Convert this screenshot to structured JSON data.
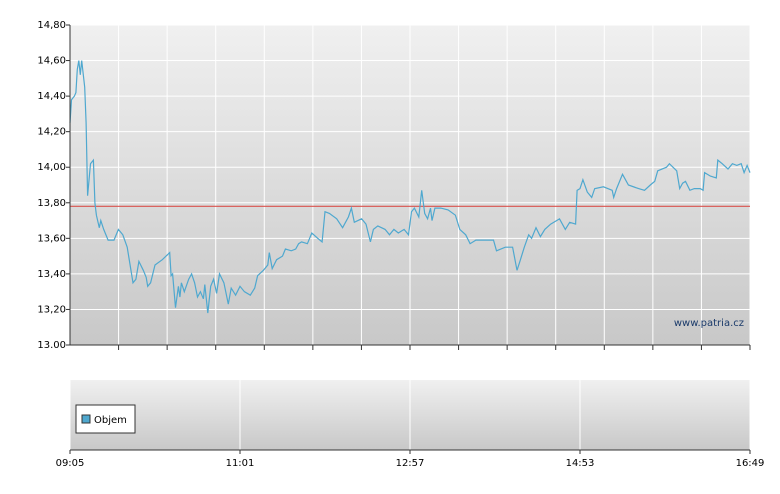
{
  "chart_data": {
    "type": "line",
    "x": [
      "09:05",
      "09:06",
      "09:08",
      "09:09",
      "09:10",
      "09:11",
      "09:12",
      "09:13",
      "09:15",
      "09:16",
      "09:17",
      "09:19",
      "09:21",
      "09:22",
      "09:23",
      "09:25",
      "09:26",
      "09:28",
      "09:31",
      "09:35",
      "09:38",
      "09:41",
      "09:44",
      "09:46",
      "09:48",
      "09:50",
      "09:52",
      "09:55",
      "09:57",
      "09:58",
      "10:00",
      "10:03",
      "10:08",
      "10:13",
      "10:14",
      "10:15",
      "10:17",
      "10:19",
      "10:20",
      "10:21",
      "10:23",
      "10:26",
      "10:28",
      "10:30",
      "10:32",
      "10:34",
      "10:36",
      "10:37",
      "10:39",
      "10:41",
      "10:43",
      "10:45",
      "10:47",
      "10:50",
      "10:53",
      "10:55",
      "10:58",
      "11:01",
      "11:04",
      "11:08",
      "11:11",
      "11:13",
      "11:17",
      "11:20",
      "11:21",
      "11:23",
      "11:26",
      "11:30",
      "11:32",
      "11:36",
      "11:39",
      "11:41",
      "11:43",
      "11:47",
      "11:50",
      "11:54",
      "11:57",
      "11:59",
      "12:02",
      "12:07",
      "12:11",
      "12:15",
      "12:17",
      "12:19",
      "12:24",
      "12:27",
      "12:30",
      "12:32",
      "12:35",
      "12:40",
      "12:43",
      "12:46",
      "12:49",
      "12:53",
      "12:56",
      "12:58",
      "13:00",
      "13:03",
      "13:05",
      "13:07",
      "13:09",
      "13:11",
      "13:12",
      "13:14",
      "13:18",
      "13:23",
      "13:28",
      "13:31",
      "13:35",
      "13:38",
      "13:42",
      "13:48",
      "13:54",
      "13:56",
      "14:02",
      "14:05",
      "14:07",
      "14:10",
      "14:12",
      "14:15",
      "14:18",
      "14:20",
      "14:23",
      "14:26",
      "14:29",
      "14:33",
      "14:37",
      "14:39",
      "14:43",
      "14:46",
      "14:50",
      "14:51",
      "14:53",
      "14:55",
      "14:58",
      "15:01",
      "15:03",
      "15:09",
      "15:12",
      "15:15",
      "15:16",
      "15:18",
      "15:22",
      "15:26",
      "15:33",
      "15:37",
      "15:41",
      "15:44",
      "15:46",
      "15:52",
      "15:54",
      "15:59",
      "16:01",
      "16:03",
      "16:05",
      "16:08",
      "16:11",
      "16:15",
      "16:17",
      "16:18",
      "16:22",
      "16:26",
      "16:27",
      "16:30",
      "16:34",
      "16:37",
      "16:40",
      "16:43",
      "16:45",
      "16:47",
      "16:49"
    ],
    "series": [
      {
        "color": "#4fa8cf",
        "values": [
          14.25,
          14.38,
          14.4,
          14.42,
          14.55,
          14.6,
          14.52,
          14.6,
          14.45,
          14.25,
          13.84,
          14.02,
          14.04,
          13.8,
          13.73,
          13.66,
          13.7,
          13.65,
          13.59,
          13.59,
          13.65,
          13.62,
          13.55,
          13.45,
          13.35,
          13.37,
          13.47,
          13.42,
          13.38,
          13.33,
          13.35,
          13.45,
          13.48,
          13.52,
          13.39,
          13.4,
          13.21,
          13.33,
          13.27,
          13.35,
          13.3,
          13.37,
          13.4,
          13.35,
          13.27,
          13.3,
          13.26,
          13.34,
          13.18,
          13.33,
          13.37,
          13.29,
          13.4,
          13.35,
          13.23,
          13.32,
          13.28,
          13.33,
          13.3,
          13.28,
          13.32,
          13.39,
          13.42,
          13.45,
          13.52,
          13.43,
          13.48,
          13.5,
          13.54,
          13.53,
          13.54,
          13.57,
          13.58,
          13.57,
          13.63,
          13.6,
          13.58,
          13.75,
          13.74,
          13.71,
          13.66,
          13.72,
          13.77,
          13.69,
          13.71,
          13.68,
          13.58,
          13.65,
          13.67,
          13.65,
          13.62,
          13.65,
          13.63,
          13.65,
          13.62,
          13.75,
          13.77,
          13.72,
          13.87,
          13.74,
          13.71,
          13.77,
          13.7,
          13.77,
          13.77,
          13.76,
          13.73,
          13.65,
          13.62,
          13.57,
          13.59,
          13.59,
          13.59,
          13.53,
          13.55,
          13.55,
          13.55,
          13.42,
          13.47,
          13.55,
          13.62,
          13.6,
          13.66,
          13.61,
          13.65,
          13.68,
          13.7,
          13.71,
          13.65,
          13.69,
          13.68,
          13.87,
          13.88,
          13.93,
          13.86,
          13.83,
          13.88,
          13.89,
          13.88,
          13.87,
          13.83,
          13.88,
          13.96,
          13.9,
          13.88,
          13.87,
          13.9,
          13.92,
          13.98,
          14.0,
          14.02,
          13.98,
          13.88,
          13.91,
          13.92,
          13.87,
          13.88,
          13.88,
          13.87,
          13.97,
          13.95,
          13.94,
          14.04,
          14.02,
          13.99,
          14.02,
          14.01,
          14.02,
          13.97,
          14.01,
          13.97
        ]
      }
    ],
    "reference_line": {
      "value": 13.78,
      "color": "#d9534f"
    },
    "ylim": [
      13,
      14.8
    ],
    "yticks": [
      {
        "value": 13,
        "label": "13.00"
      },
      {
        "value": 13.2,
        "label": "13,20"
      },
      {
        "value": 13.4,
        "label": "13,40"
      },
      {
        "value": 13.6,
        "label": "13,60"
      },
      {
        "value": 13.8,
        "label": "13,80"
      },
      {
        "value": 14,
        "label": "14,00"
      },
      {
        "value": 14.2,
        "label": "14,20"
      },
      {
        "value": 14.4,
        "label": "14,40"
      },
      {
        "value": 14.6,
        "label": "14,60"
      },
      {
        "value": 14.8,
        "label": "14,80"
      }
    ],
    "xlim": [
      "09:05",
      "16:49"
    ],
    "xticks": [
      "09:05",
      "11:01",
      "12:57",
      "14:53",
      "16:49"
    ],
    "grid": true,
    "watermark": "www.patria.cz",
    "volume_legend": {
      "name": "Objem",
      "color": "#4fa8cf"
    }
  }
}
